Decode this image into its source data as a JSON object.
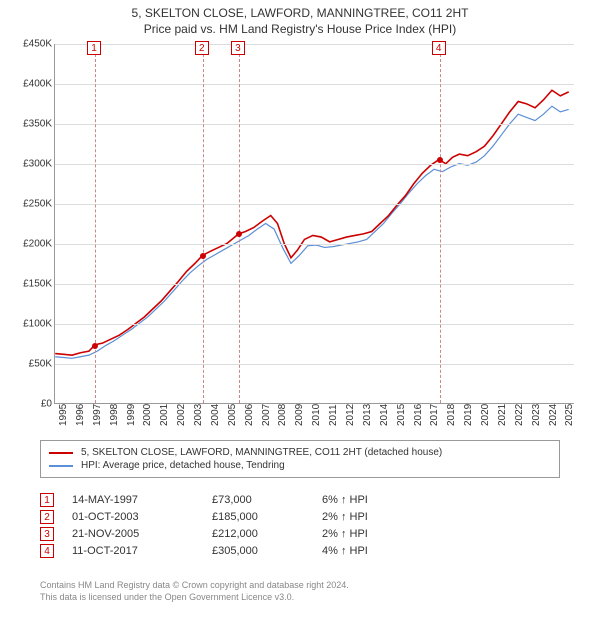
{
  "title": "5, SKELTON CLOSE, LAWFORD, MANNINGTREE, CO11 2HT",
  "subtitle": "Price paid vs. HM Land Registry's House Price Index (HPI)",
  "chart": {
    "type": "line",
    "ylim": [
      0,
      450000
    ],
    "ytick_step": 50000,
    "ytick_labels": [
      "£0",
      "£50K",
      "£100K",
      "£150K",
      "£200K",
      "£250K",
      "£300K",
      "£350K",
      "£400K",
      "£450K"
    ],
    "xlim": [
      1995,
      2025.8
    ],
    "xtick_step": 1,
    "xtick_labels": [
      "1995",
      "1996",
      "1997",
      "1998",
      "1999",
      "2000",
      "2001",
      "2002",
      "2003",
      "2004",
      "2005",
      "2006",
      "2007",
      "2008",
      "2009",
      "2010",
      "2011",
      "2012",
      "2013",
      "2014",
      "2015",
      "2016",
      "2017",
      "2018",
      "2019",
      "2020",
      "2021",
      "2022",
      "2023",
      "2024",
      "2025"
    ],
    "grid_color": "#dddddd",
    "axis_color": "#999999",
    "background_color": "#ffffff",
    "series": [
      {
        "name": "property",
        "color": "#cc0000",
        "width": 1.6,
        "points": [
          [
            1995.0,
            62000
          ],
          [
            1995.5,
            61000
          ],
          [
            1996.0,
            60000
          ],
          [
            1996.5,
            63000
          ],
          [
            1997.0,
            65000
          ],
          [
            1997.37,
            73000
          ],
          [
            1997.8,
            75000
          ],
          [
            1998.3,
            80000
          ],
          [
            1998.8,
            85000
          ],
          [
            1999.3,
            92000
          ],
          [
            1999.8,
            100000
          ],
          [
            2000.3,
            108000
          ],
          [
            2000.8,
            118000
          ],
          [
            2001.3,
            128000
          ],
          [
            2001.8,
            140000
          ],
          [
            2002.3,
            152000
          ],
          [
            2002.8,
            165000
          ],
          [
            2003.3,
            175000
          ],
          [
            2003.75,
            185000
          ],
          [
            2004.2,
            190000
          ],
          [
            2004.7,
            195000
          ],
          [
            2005.2,
            200000
          ],
          [
            2005.89,
            212000
          ],
          [
            2006.3,
            215000
          ],
          [
            2006.8,
            220000
          ],
          [
            2007.3,
            228000
          ],
          [
            2007.8,
            235000
          ],
          [
            2008.2,
            225000
          ],
          [
            2008.6,
            200000
          ],
          [
            2009.0,
            182000
          ],
          [
            2009.4,
            192000
          ],
          [
            2009.8,
            205000
          ],
          [
            2010.3,
            210000
          ],
          [
            2010.8,
            208000
          ],
          [
            2011.3,
            202000
          ],
          [
            2011.8,
            205000
          ],
          [
            2012.3,
            208000
          ],
          [
            2012.8,
            210000
          ],
          [
            2013.3,
            212000
          ],
          [
            2013.8,
            215000
          ],
          [
            2014.3,
            225000
          ],
          [
            2014.8,
            235000
          ],
          [
            2015.3,
            248000
          ],
          [
            2015.8,
            260000
          ],
          [
            2016.3,
            275000
          ],
          [
            2016.8,
            288000
          ],
          [
            2017.3,
            298000
          ],
          [
            2017.78,
            305000
          ],
          [
            2018.2,
            300000
          ],
          [
            2018.6,
            308000
          ],
          [
            2019.0,
            312000
          ],
          [
            2019.5,
            310000
          ],
          [
            2020.0,
            315000
          ],
          [
            2020.5,
            322000
          ],
          [
            2021.0,
            335000
          ],
          [
            2021.5,
            350000
          ],
          [
            2022.0,
            365000
          ],
          [
            2022.5,
            378000
          ],
          [
            2023.0,
            375000
          ],
          [
            2023.5,
            370000
          ],
          [
            2024.0,
            380000
          ],
          [
            2024.5,
            392000
          ],
          [
            2025.0,
            385000
          ],
          [
            2025.5,
            390000
          ]
        ]
      },
      {
        "name": "hpi",
        "color": "#5b8fd6",
        "width": 1.2,
        "points": [
          [
            1995.0,
            58000
          ],
          [
            1995.5,
            57000
          ],
          [
            1996.0,
            56000
          ],
          [
            1996.5,
            58000
          ],
          [
            1997.0,
            60000
          ],
          [
            1997.5,
            65000
          ],
          [
            1998.0,
            72000
          ],
          [
            1998.5,
            78000
          ],
          [
            1999.0,
            85000
          ],
          [
            1999.5,
            92000
          ],
          [
            2000.0,
            100000
          ],
          [
            2000.5,
            108000
          ],
          [
            2001.0,
            118000
          ],
          [
            2001.5,
            128000
          ],
          [
            2002.0,
            140000
          ],
          [
            2002.5,
            152000
          ],
          [
            2003.0,
            163000
          ],
          [
            2003.5,
            172000
          ],
          [
            2004.0,
            180000
          ],
          [
            2004.5,
            186000
          ],
          [
            2005.0,
            192000
          ],
          [
            2005.5,
            198000
          ],
          [
            2006.0,
            204000
          ],
          [
            2006.5,
            210000
          ],
          [
            2007.0,
            218000
          ],
          [
            2007.5,
            225000
          ],
          [
            2008.0,
            218000
          ],
          [
            2008.5,
            195000
          ],
          [
            2009.0,
            175000
          ],
          [
            2009.5,
            185000
          ],
          [
            2010.0,
            197000
          ],
          [
            2010.5,
            198000
          ],
          [
            2011.0,
            195000
          ],
          [
            2011.5,
            196000
          ],
          [
            2012.0,
            198000
          ],
          [
            2012.5,
            200000
          ],
          [
            2013.0,
            202000
          ],
          [
            2013.5,
            205000
          ],
          [
            2014.0,
            215000
          ],
          [
            2014.5,
            225000
          ],
          [
            2015.0,
            238000
          ],
          [
            2015.5,
            250000
          ],
          [
            2016.0,
            263000
          ],
          [
            2016.5,
            275000
          ],
          [
            2017.0,
            285000
          ],
          [
            2017.5,
            293000
          ],
          [
            2018.0,
            290000
          ],
          [
            2018.5,
            296000
          ],
          [
            2019.0,
            300000
          ],
          [
            2019.5,
            298000
          ],
          [
            2020.0,
            302000
          ],
          [
            2020.5,
            310000
          ],
          [
            2021.0,
            322000
          ],
          [
            2021.5,
            336000
          ],
          [
            2022.0,
            350000
          ],
          [
            2022.5,
            362000
          ],
          [
            2023.0,
            358000
          ],
          [
            2023.5,
            354000
          ],
          [
            2024.0,
            362000
          ],
          [
            2024.5,
            372000
          ],
          [
            2025.0,
            365000
          ],
          [
            2025.5,
            368000
          ]
        ]
      }
    ],
    "markers": [
      {
        "n": "1",
        "x": 1997.37,
        "y": 73000
      },
      {
        "n": "2",
        "x": 2003.75,
        "y": 185000
      },
      {
        "n": "3",
        "x": 2005.89,
        "y": 212000
      },
      {
        "n": "4",
        "x": 2017.78,
        "y": 305000
      }
    ]
  },
  "legend": [
    {
      "color": "#cc0000",
      "label": "5, SKELTON CLOSE, LAWFORD, MANNINGTREE, CO11 2HT (detached house)"
    },
    {
      "color": "#5b8fd6",
      "label": "HPI: Average price, detached house, Tendring"
    }
  ],
  "sales": [
    {
      "n": "1",
      "date": "14-MAY-1997",
      "price": "£73,000",
      "delta": "6% ↑ HPI"
    },
    {
      "n": "2",
      "date": "01-OCT-2003",
      "price": "£185,000",
      "delta": "2% ↑ HPI"
    },
    {
      "n": "3",
      "date": "21-NOV-2005",
      "price": "£212,000",
      "delta": "2% ↑ HPI"
    },
    {
      "n": "4",
      "date": "11-OCT-2017",
      "price": "£305,000",
      "delta": "4% ↑ HPI"
    }
  ],
  "attribution": {
    "line1": "Contains HM Land Registry data © Crown copyright and database right 2024.",
    "line2": "This data is licensed under the Open Government Licence v3.0."
  }
}
